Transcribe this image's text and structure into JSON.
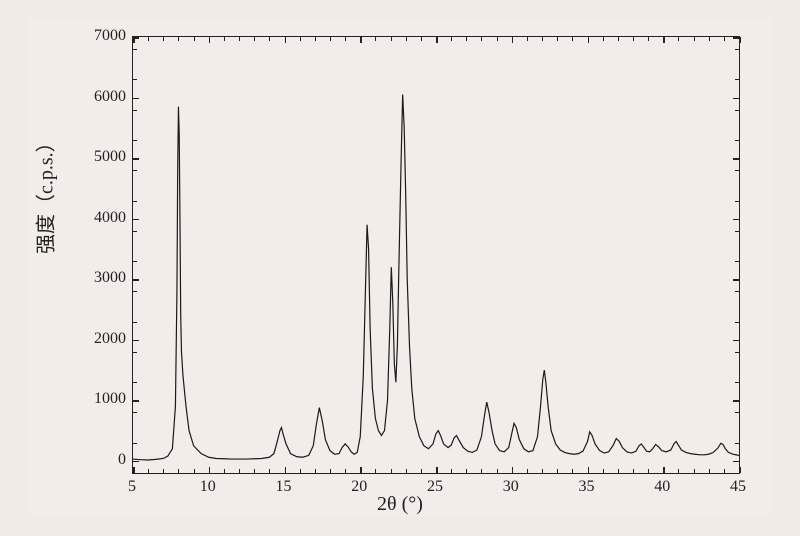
{
  "chart": {
    "type": "line",
    "background_color": "#f2ede8",
    "frame_color": "#222222",
    "line_color": "#1a1a1a",
    "line_width": 1.2,
    "xlabel": "2θ  (°)",
    "ylabel": "强度（c.p.s.）",
    "label_fontsize": 20,
    "tick_fontsize": 16,
    "xlim": [
      5,
      45
    ],
    "ylim": [
      -200,
      7000
    ],
    "xtick_step": 5,
    "ytick_step": 1000,
    "x_minor_step": 1,
    "y_minor_step": 500,
    "xticks": [
      5,
      10,
      15,
      20,
      25,
      30,
      35,
      40,
      45
    ],
    "yticks": [
      0,
      1000,
      2000,
      3000,
      4000,
      5000,
      6000,
      7000
    ],
    "xrd_points": [
      [
        5.0,
        30
      ],
      [
        5.5,
        20
      ],
      [
        6.0,
        15
      ],
      [
        6.5,
        25
      ],
      [
        7.0,
        40
      ],
      [
        7.3,
        80
      ],
      [
        7.6,
        200
      ],
      [
        7.8,
        900
      ],
      [
        7.9,
        2800
      ],
      [
        7.95,
        4800
      ],
      [
        8.0,
        5850
      ],
      [
        8.05,
        5400
      ],
      [
        8.1,
        4000
      ],
      [
        8.15,
        2400
      ],
      [
        8.2,
        1800
      ],
      [
        8.3,
        1400
      ],
      [
        8.5,
        900
      ],
      [
        8.7,
        500
      ],
      [
        9.0,
        250
      ],
      [
        9.5,
        120
      ],
      [
        10.0,
        60
      ],
      [
        10.5,
        40
      ],
      [
        11.0,
        35
      ],
      [
        11.5,
        30
      ],
      [
        12.0,
        30
      ],
      [
        12.5,
        30
      ],
      [
        13.0,
        35
      ],
      [
        13.5,
        40
      ],
      [
        14.0,
        60
      ],
      [
        14.3,
        120
      ],
      [
        14.5,
        300
      ],
      [
        14.7,
        500
      ],
      [
        14.8,
        550
      ],
      [
        14.9,
        450
      ],
      [
        15.1,
        280
      ],
      [
        15.4,
        120
      ],
      [
        15.8,
        70
      ],
      [
        16.2,
        60
      ],
      [
        16.6,
        90
      ],
      [
        16.9,
        250
      ],
      [
        17.1,
        600
      ],
      [
        17.3,
        880
      ],
      [
        17.5,
        650
      ],
      [
        17.7,
        350
      ],
      [
        18.0,
        170
      ],
      [
        18.3,
        110
      ],
      [
        18.6,
        120
      ],
      [
        18.8,
        220
      ],
      [
        19.0,
        280
      ],
      [
        19.2,
        230
      ],
      [
        19.4,
        150
      ],
      [
        19.6,
        110
      ],
      [
        19.8,
        140
      ],
      [
        20.0,
        400
      ],
      [
        20.2,
        1400
      ],
      [
        20.35,
        2900
      ],
      [
        20.45,
        3900
      ],
      [
        20.55,
        3500
      ],
      [
        20.65,
        2200
      ],
      [
        20.8,
        1200
      ],
      [
        21.0,
        700
      ],
      [
        21.2,
        500
      ],
      [
        21.4,
        420
      ],
      [
        21.6,
        500
      ],
      [
        21.8,
        1000
      ],
      [
        21.95,
        2200
      ],
      [
        22.05,
        3200
      ],
      [
        22.15,
        2600
      ],
      [
        22.25,
        1600
      ],
      [
        22.35,
        1300
      ],
      [
        22.45,
        1900
      ],
      [
        22.55,
        3200
      ],
      [
        22.7,
        5000
      ],
      [
        22.8,
        6050
      ],
      [
        22.9,
        5500
      ],
      [
        23.0,
        4400
      ],
      [
        23.1,
        3000
      ],
      [
        23.25,
        1900
      ],
      [
        23.4,
        1200
      ],
      [
        23.6,
        700
      ],
      [
        23.9,
        400
      ],
      [
        24.2,
        250
      ],
      [
        24.5,
        200
      ],
      [
        24.8,
        280
      ],
      [
        25.0,
        450
      ],
      [
        25.15,
        500
      ],
      [
        25.3,
        420
      ],
      [
        25.5,
        280
      ],
      [
        25.8,
        220
      ],
      [
        26.0,
        260
      ],
      [
        26.2,
        380
      ],
      [
        26.35,
        420
      ],
      [
        26.5,
        350
      ],
      [
        26.8,
        220
      ],
      [
        27.1,
        160
      ],
      [
        27.4,
        140
      ],
      [
        27.7,
        180
      ],
      [
        28.0,
        400
      ],
      [
        28.2,
        750
      ],
      [
        28.35,
        970
      ],
      [
        28.5,
        800
      ],
      [
        28.7,
        500
      ],
      [
        28.9,
        280
      ],
      [
        29.2,
        170
      ],
      [
        29.5,
        150
      ],
      [
        29.8,
        220
      ],
      [
        30.0,
        450
      ],
      [
        30.15,
        620
      ],
      [
        30.3,
        550
      ],
      [
        30.5,
        350
      ],
      [
        30.8,
        200
      ],
      [
        31.1,
        150
      ],
      [
        31.4,
        170
      ],
      [
        31.7,
        400
      ],
      [
        31.9,
        900
      ],
      [
        32.05,
        1350
      ],
      [
        32.15,
        1500
      ],
      [
        32.25,
        1300
      ],
      [
        32.4,
        900
      ],
      [
        32.6,
        500
      ],
      [
        32.9,
        280
      ],
      [
        33.2,
        180
      ],
      [
        33.5,
        140
      ],
      [
        33.8,
        120
      ],
      [
        34.1,
        110
      ],
      [
        34.4,
        120
      ],
      [
        34.7,
        160
      ],
      [
        35.0,
        320
      ],
      [
        35.15,
        480
      ],
      [
        35.3,
        420
      ],
      [
        35.5,
        280
      ],
      [
        35.8,
        170
      ],
      [
        36.1,
        130
      ],
      [
        36.4,
        150
      ],
      [
        36.7,
        260
      ],
      [
        36.9,
        370
      ],
      [
        37.1,
        320
      ],
      [
        37.3,
        220
      ],
      [
        37.6,
        150
      ],
      [
        37.9,
        130
      ],
      [
        38.2,
        160
      ],
      [
        38.4,
        250
      ],
      [
        38.55,
        280
      ],
      [
        38.7,
        230
      ],
      [
        38.9,
        160
      ],
      [
        39.1,
        150
      ],
      [
        39.3,
        200
      ],
      [
        39.5,
        270
      ],
      [
        39.7,
        230
      ],
      [
        39.9,
        170
      ],
      [
        40.2,
        150
      ],
      [
        40.5,
        180
      ],
      [
        40.7,
        280
      ],
      [
        40.85,
        320
      ],
      [
        41.0,
        260
      ],
      [
        41.2,
        180
      ],
      [
        41.5,
        140
      ],
      [
        41.8,
        120
      ],
      [
        42.1,
        110
      ],
      [
        42.4,
        100
      ],
      [
        42.7,
        100
      ],
      [
        43.0,
        110
      ],
      [
        43.3,
        140
      ],
      [
        43.6,
        210
      ],
      [
        43.8,
        290
      ],
      [
        43.95,
        270
      ],
      [
        44.1,
        200
      ],
      [
        44.3,
        140
      ],
      [
        44.6,
        110
      ],
      [
        44.9,
        95
      ],
      [
        45.0,
        90
      ]
    ]
  }
}
